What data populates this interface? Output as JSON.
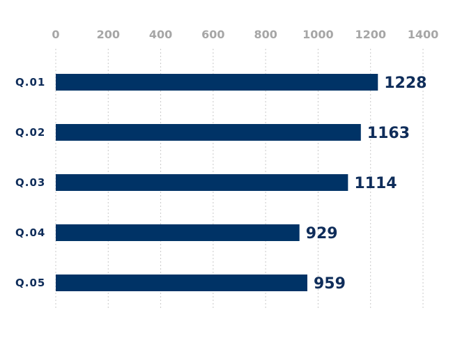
{
  "chart_data": {
    "type": "bar",
    "orientation": "horizontal",
    "categories": [
      "Q.01",
      "Q.02",
      "Q.03",
      "Q.04",
      "Q.05"
    ],
    "values": [
      1228,
      1163,
      1114,
      929,
      959
    ],
    "title": "",
    "xlabel": "",
    "ylabel": "",
    "xlim": [
      0,
      1400
    ],
    "ticks": [
      "0",
      "200",
      "400",
      "600",
      "800",
      "1000",
      "1200",
      "1400"
    ],
    "grid": true,
    "grid_style": "dotted",
    "tick_position": "top",
    "bar_color": "#003366",
    "label_color": "#0f2d5a"
  }
}
